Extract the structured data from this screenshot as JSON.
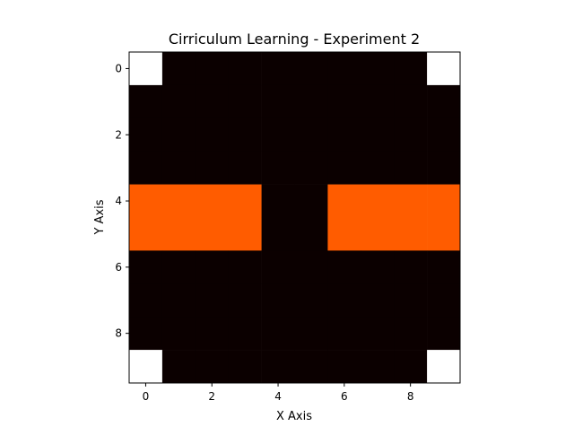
{
  "chart_data": {
    "type": "heatmap",
    "title": "Cirriculum Learning - Experiment 2",
    "xlabel": "X Axis",
    "ylabel": "Y Axis",
    "xlim": [
      -0.5,
      9.5
    ],
    "ylim": [
      9.5,
      -0.5
    ],
    "x_ticks": [
      0,
      2,
      4,
      6,
      8
    ],
    "y_ticks": [
      0,
      2,
      4,
      6,
      8
    ],
    "colormap": "hot",
    "colors": {
      "low": "#0b0000",
      "mid": "#ff5c00",
      "high": "#ffffff"
    },
    "grid": false,
    "rows": 10,
    "cols": 10,
    "values": [
      [
        2,
        0,
        0,
        0,
        0,
        0,
        0,
        0,
        0,
        2
      ],
      [
        0,
        0,
        0,
        0,
        0,
        0,
        0,
        0,
        0,
        0
      ],
      [
        0,
        0,
        0,
        0,
        0,
        0,
        0,
        0,
        0,
        0
      ],
      [
        0,
        0,
        0,
        0,
        0,
        0,
        0,
        0,
        0,
        0
      ],
      [
        1,
        1,
        1,
        1,
        0,
        0,
        1,
        1,
        1,
        1
      ],
      [
        1,
        1,
        1,
        1,
        0,
        0,
        1,
        1,
        1,
        1
      ],
      [
        0,
        0,
        0,
        0,
        0,
        0,
        0,
        0,
        0,
        0
      ],
      [
        0,
        0,
        0,
        0,
        0,
        0,
        0,
        0,
        0,
        0
      ],
      [
        0,
        0,
        0,
        0,
        0,
        0,
        0,
        0,
        0,
        0
      ],
      [
        2,
        0,
        0,
        0,
        0,
        0,
        0,
        0,
        0,
        2
      ]
    ]
  }
}
